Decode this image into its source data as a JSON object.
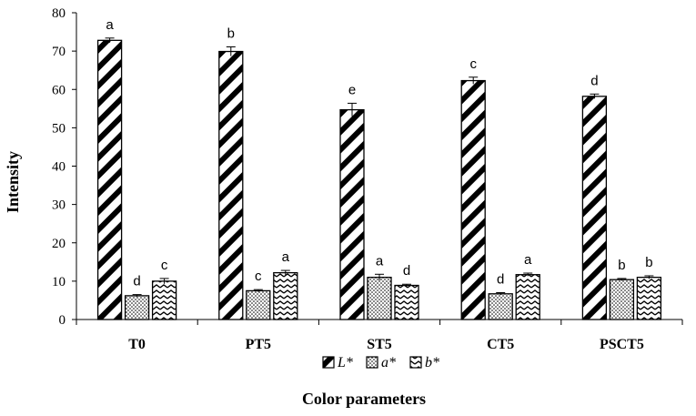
{
  "chart_data": {
    "type": "bar",
    "ylabel": "Intensity",
    "xlabel": "Color parameters",
    "ylim": [
      0,
      80
    ],
    "yticks": [
      0,
      10,
      20,
      30,
      40,
      50,
      60,
      70,
      80
    ],
    "grid": false,
    "legend_position": "bottom",
    "categories": [
      "T0",
      "PT5",
      "ST5",
      "CT5",
      "PSCT5"
    ],
    "series": [
      {
        "name": "L*",
        "pattern": "diagonal-stripes",
        "values": [
          72.8,
          69.9,
          54.7,
          62.3,
          58.2
        ],
        "errors": [
          0.6,
          1.2,
          1.7,
          0.9,
          0.6
        ],
        "labels": [
          "a",
          "b",
          "e",
          "c",
          "d"
        ]
      },
      {
        "name": "a*",
        "pattern": "dots",
        "values": [
          6.2,
          7.5,
          11.0,
          6.7,
          10.4
        ],
        "errors": [
          0.3,
          0.3,
          0.8,
          0.3,
          0.3
        ],
        "labels": [
          "d",
          "c",
          "a",
          "d",
          "b"
        ]
      },
      {
        "name": "b*",
        "pattern": "zigzag",
        "values": [
          10.0,
          12.2,
          8.9,
          11.7,
          11.0
        ],
        "errors": [
          0.7,
          0.6,
          0.3,
          0.4,
          0.4
        ],
        "labels": [
          "c",
          "a",
          "d",
          "a",
          "b"
        ]
      }
    ]
  }
}
